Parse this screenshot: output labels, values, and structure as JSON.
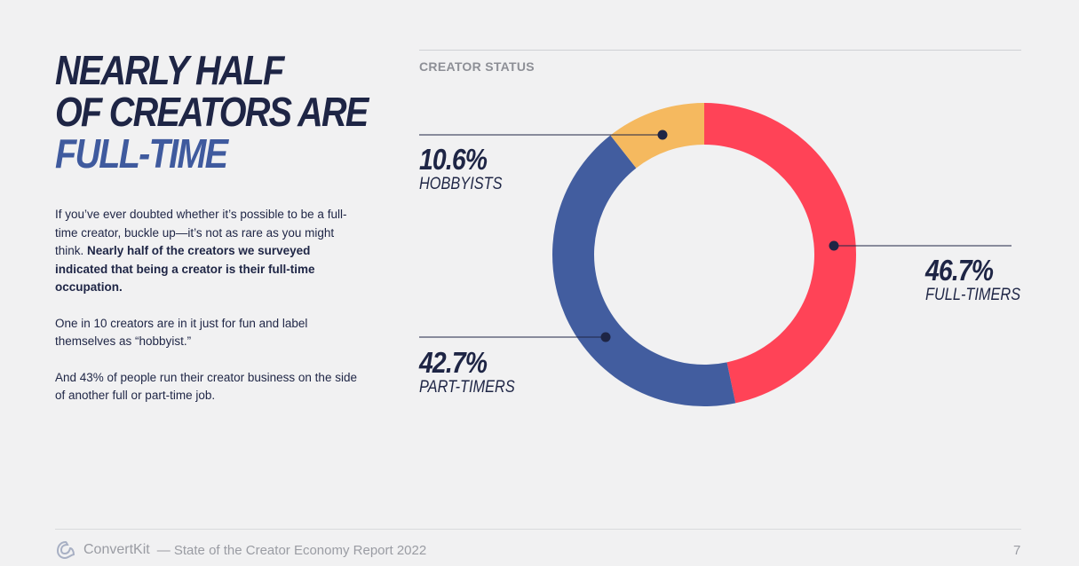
{
  "headline": {
    "line1": "NEARLY HALF",
    "line2": "OF CREATORS ARE",
    "line3": "FULL-TIME"
  },
  "body": {
    "p1_plain": "If you’ve ever doubted whether it’s possible to be a full-time creator, buckle up—it’s not as rare as you might think. ",
    "p1_bold": "Nearly half of the creators we surveyed indicated that being a creator is their full-time occupation.",
    "p2": "One in 10 creators are in it just for fun and label themselves as “hobbyist.”",
    "p3": "And 43% of people run their creator business on the side of another full or part-time job."
  },
  "chart_data": {
    "type": "pie",
    "title": "CREATOR STATUS",
    "donut": true,
    "start_angle_deg": 0,
    "slices": [
      {
        "label": "FULL-TIMERS",
        "value": 46.7,
        "display": "46.7%",
        "color": "#ff4357"
      },
      {
        "label": "PART-TIMERS",
        "value": 42.7,
        "display": "42.7%",
        "color": "#425d9f"
      },
      {
        "label": "HOBBYISTS",
        "value": 10.6,
        "display": "10.6%",
        "color": "#f5b95f"
      }
    ]
  },
  "colors": {
    "navy": "#1e2545",
    "accent_blue": "#3f5a9e",
    "background": "#f1f1f2"
  },
  "footer": {
    "logo_icon": "convertkit-logo-icon",
    "brand": "ConvertKit",
    "report": "— State of the Creator Economy Report 2022",
    "page": "7"
  }
}
